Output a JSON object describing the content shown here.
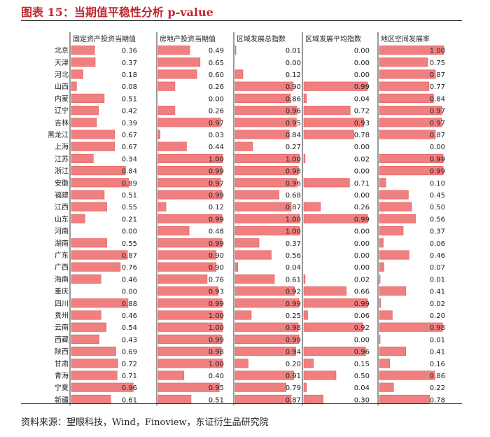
{
  "title": "图表 15：当期值平稳性分析 p-value",
  "source": "资料来源：望眼科技，Wind，Finoview，东证衍生品研究院",
  "chart_data": {
    "type": "table",
    "columns": [
      "固定资产投资当期值",
      "房地产投资当期值",
      "区域发展总指数",
      "区域发展平均指数",
      "地区空间发展率"
    ],
    "bar_color": "#f08080",
    "rows": [
      {
        "province": "北京",
        "values": [
          "0.36",
          "0.49",
          "0.01",
          "0.00",
          "1.00"
        ]
      },
      {
        "province": "天津",
        "values": [
          "0.37",
          "0.65",
          "0.00",
          "0.00",
          "0.75"
        ]
      },
      {
        "province": "河北",
        "values": [
          "0.18",
          "0.60",
          "0.12",
          "0.00",
          "0.87"
        ]
      },
      {
        "province": "山西",
        "values": [
          "0.08",
          "0.26",
          "0.90",
          "0.99",
          "0.77"
        ]
      },
      {
        "province": "内蒙",
        "values": [
          "0.51",
          "0.00",
          "0.86",
          "0.04",
          "0.84"
        ]
      },
      {
        "province": "辽宁",
        "values": [
          "0.42",
          "0.26",
          "0.96",
          "0.72",
          "0.97"
        ]
      },
      {
        "province": "吉林",
        "values": [
          "0.39",
          "0.97",
          "0.95",
          "0.93",
          "0.97"
        ]
      },
      {
        "province": "黑龙江",
        "values": [
          "0.67",
          "0.03",
          "0.84",
          "0.78",
          "0.87"
        ]
      },
      {
        "province": "上海",
        "values": [
          "0.67",
          "0.44",
          "0.27",
          "0.00",
          "0.00"
        ]
      },
      {
        "province": "江苏",
        "values": [
          "0.34",
          "1.00",
          "1.00",
          "0.02",
          "0.99"
        ]
      },
      {
        "province": "浙江",
        "values": [
          "0.84",
          "0.99",
          "0.98",
          "0.00",
          "0.99"
        ]
      },
      {
        "province": "安徽",
        "values": [
          "0.89",
          "0.97",
          "0.96",
          "0.71",
          "0.10"
        ]
      },
      {
        "province": "福建",
        "values": [
          "0.51",
          "0.99",
          "0.68",
          "0.00",
          "0.45"
        ]
      },
      {
        "province": "江西",
        "values": [
          "0.55",
          "0.12",
          "0.87",
          "0.26",
          "0.50"
        ]
      },
      {
        "province": "山东",
        "values": [
          "0.21",
          "0.99",
          "1.00",
          "0.99",
          "0.56"
        ]
      },
      {
        "province": "河南",
        "values": [
          "0.00",
          "0.48",
          "1.00",
          "0.00",
          "0.37"
        ]
      },
      {
        "province": "湖南",
        "values": [
          "0.55",
          "0.99",
          "0.37",
          "0.00",
          "0.06"
        ]
      },
      {
        "province": "广东",
        "values": [
          "0.87",
          "0.90",
          "0.56",
          "0.00",
          "0.46"
        ]
      },
      {
        "province": "广西",
        "values": [
          "0.76",
          "0.90",
          "0.04",
          "0.00",
          "0.07"
        ]
      },
      {
        "province": "海南",
        "values": [
          "0.46",
          "0.76",
          "0.61",
          "0.02",
          "0.01"
        ]
      },
      {
        "province": "重庆",
        "values": [
          "0.00",
          "0.93",
          "0.92",
          "0.66",
          "0.41"
        ]
      },
      {
        "province": "四川",
        "values": [
          "0.88",
          "0.99",
          "0.99",
          "0.99",
          "0.02"
        ]
      },
      {
        "province": "贵州",
        "values": [
          "0.46",
          "1.00",
          "0.25",
          "0.06",
          "0.20"
        ]
      },
      {
        "province": "云南",
        "values": [
          "0.54",
          "1.00",
          "0.98",
          "0.92",
          "0.98"
        ]
      },
      {
        "province": "西藏",
        "values": [
          "0.43",
          "0.99",
          "0.99",
          "0.00",
          "0.01"
        ]
      },
      {
        "province": "陕西",
        "values": [
          "0.69",
          "0.98",
          "0.94",
          "0.96",
          "0.41"
        ]
      },
      {
        "province": "甘肃",
        "values": [
          "0.72",
          "1.00",
          "0.20",
          "0.15",
          "0.16"
        ]
      },
      {
        "province": "青海",
        "values": [
          "0.71",
          "0.40",
          "0.91",
          "0.50",
          "0.86"
        ]
      },
      {
        "province": "宁夏",
        "values": [
          "0.96",
          "0.95",
          "0.79",
          "0.04",
          "0.22"
        ]
      },
      {
        "province": "新疆",
        "values": [
          "0.61",
          "0.51",
          "0.87",
          "0.30",
          "0.78"
        ]
      }
    ]
  }
}
